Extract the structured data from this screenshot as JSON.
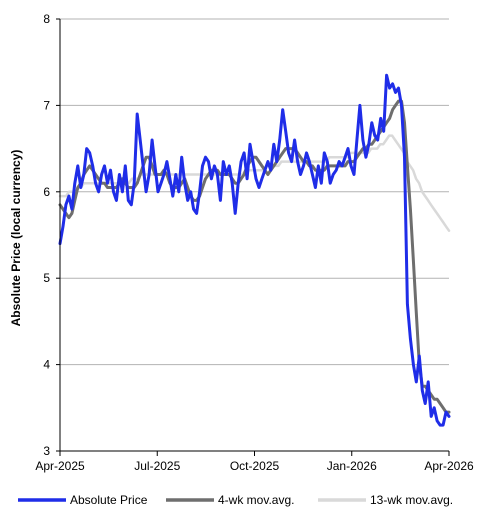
{
  "chart_data": {
    "type": "line",
    "ylabel": "Absolute Price (local currency)",
    "ylim": [
      3,
      8
    ],
    "yticks": [
      "3",
      "4",
      "5",
      "6",
      "7",
      "8"
    ],
    "xticks": [
      "Apr-2025",
      "Jul-2025",
      "Oct-2025",
      "Jan-2026",
      "Apr-2026"
    ],
    "grid": "horizontal",
    "legend": "bottom",
    "series": [
      {
        "name": "Absolute Price",
        "color": "#1f2de8",
        "values": [
          5.4,
          5.6,
          5.85,
          5.95,
          5.8,
          6.1,
          6.3,
          6.05,
          6.2,
          6.5,
          6.45,
          6.3,
          6.1,
          6.0,
          6.2,
          6.3,
          6.1,
          6.25,
          6.0,
          5.9,
          6.2,
          6.0,
          6.3,
          5.9,
          5.85,
          6.1,
          6.9,
          6.6,
          6.3,
          6.0,
          6.2,
          6.6,
          6.3,
          6.0,
          6.1,
          6.2,
          6.35,
          6.15,
          5.95,
          6.2,
          6.0,
          6.4,
          6.1,
          5.9,
          6.0,
          5.8,
          5.75,
          6.0,
          6.3,
          6.4,
          6.35,
          6.15,
          6.3,
          6.2,
          5.9,
          6.35,
          6.2,
          6.3,
          6.1,
          5.75,
          6.1,
          6.35,
          6.45,
          6.15,
          6.55,
          6.35,
          6.15,
          6.05,
          6.15,
          6.25,
          6.35,
          6.25,
          6.55,
          6.35,
          6.6,
          6.95,
          6.7,
          6.45,
          6.35,
          6.6,
          6.35,
          6.2,
          6.3,
          6.45,
          6.35,
          6.2,
          6.05,
          6.3,
          6.1,
          6.45,
          6.35,
          6.1,
          6.2,
          6.25,
          6.35,
          6.3,
          6.4,
          6.5,
          6.3,
          6.2,
          6.6,
          7.0,
          6.6,
          6.4,
          6.55,
          6.8,
          6.65,
          6.6,
          6.85,
          6.7,
          7.35,
          7.2,
          7.25,
          7.15,
          7.2,
          7.0,
          6.4,
          4.7,
          4.3,
          4.0,
          3.8,
          4.1,
          3.7,
          3.55,
          3.8,
          3.4,
          3.5,
          3.35,
          3.3,
          3.3,
          3.45,
          3.4
        ]
      },
      {
        "name": "4-wk mov.avg.",
        "color": "#6e6e6e",
        "values": [
          5.85,
          5.8,
          5.75,
          5.7,
          5.75,
          5.9,
          6.05,
          6.1,
          6.2,
          6.25,
          6.3,
          6.25,
          6.2,
          6.15,
          6.1,
          6.1,
          6.05,
          6.05,
          6.05,
          6.05,
          6.1,
          6.15,
          6.1,
          6.05,
          6.05,
          6.05,
          6.1,
          6.2,
          6.3,
          6.4,
          6.4,
          6.3,
          6.2,
          6.2,
          6.2,
          6.25,
          6.2,
          6.1,
          6.05,
          6.05,
          6.05,
          6.1,
          6.15,
          6.05,
          5.95,
          5.9,
          5.9,
          5.95,
          6.05,
          6.15,
          6.2,
          6.25,
          6.25,
          6.25,
          6.2,
          6.2,
          6.2,
          6.2,
          6.15,
          6.1,
          6.1,
          6.15,
          6.2,
          6.3,
          6.35,
          6.4,
          6.4,
          6.35,
          6.3,
          6.25,
          6.2,
          6.25,
          6.3,
          6.35,
          6.4,
          6.45,
          6.5,
          6.5,
          6.5,
          6.5,
          6.45,
          6.4,
          6.35,
          6.35,
          6.3,
          6.3,
          6.25,
          6.25,
          6.25,
          6.25,
          6.3,
          6.3,
          6.3,
          6.3,
          6.3,
          6.3,
          6.3,
          6.35,
          6.35,
          6.35,
          6.4,
          6.45,
          6.5,
          6.5,
          6.55,
          6.55,
          6.6,
          6.65,
          6.7,
          6.75,
          6.8,
          6.85,
          6.95,
          7.0,
          7.05,
          7.05,
          6.8,
          6.3,
          5.8,
          5.2,
          4.6,
          4.0,
          3.75,
          3.75,
          3.7,
          3.65,
          3.6,
          3.6,
          3.55,
          3.5,
          3.45,
          3.45
        ]
      },
      {
        "name": "13-wk mov.avg.",
        "color": "#d9d9d9",
        "values": [
          5.95,
          5.95,
          5.95,
          6.0,
          6.0,
          6.0,
          6.05,
          6.05,
          6.1,
          6.1,
          6.1,
          6.1,
          6.1,
          6.1,
          6.1,
          6.1,
          6.1,
          6.1,
          6.1,
          6.1,
          6.1,
          6.1,
          6.1,
          6.1,
          6.15,
          6.15,
          6.15,
          6.2,
          6.2,
          6.2,
          6.2,
          6.2,
          6.2,
          6.2,
          6.2,
          6.2,
          6.2,
          6.2,
          6.2,
          6.2,
          6.2,
          6.2,
          6.2,
          6.2,
          6.2,
          6.2,
          6.2,
          6.2,
          6.2,
          6.2,
          6.2,
          6.2,
          6.2,
          6.2,
          6.2,
          6.2,
          6.2,
          6.2,
          6.2,
          6.2,
          6.2,
          6.2,
          6.25,
          6.25,
          6.25,
          6.25,
          6.25,
          6.25,
          6.25,
          6.3,
          6.3,
          6.3,
          6.3,
          6.3,
          6.35,
          6.35,
          6.35,
          6.35,
          6.35,
          6.35,
          6.35,
          6.35,
          6.35,
          6.35,
          6.35,
          6.35,
          6.35,
          6.35,
          6.35,
          6.35,
          6.4,
          6.4,
          6.4,
          6.4,
          6.4,
          6.4,
          6.4,
          6.45,
          6.45,
          6.45,
          6.45,
          6.45,
          6.45,
          6.45,
          6.5,
          6.5,
          6.5,
          6.55,
          6.55,
          6.6,
          6.65,
          6.65,
          6.6,
          6.55,
          6.5,
          6.45,
          6.35,
          6.3,
          6.25,
          6.15,
          6.1,
          6.0,
          5.95,
          5.9,
          5.85,
          5.8,
          5.75,
          5.7,
          5.65,
          5.6,
          5.55
        ]
      }
    ]
  }
}
